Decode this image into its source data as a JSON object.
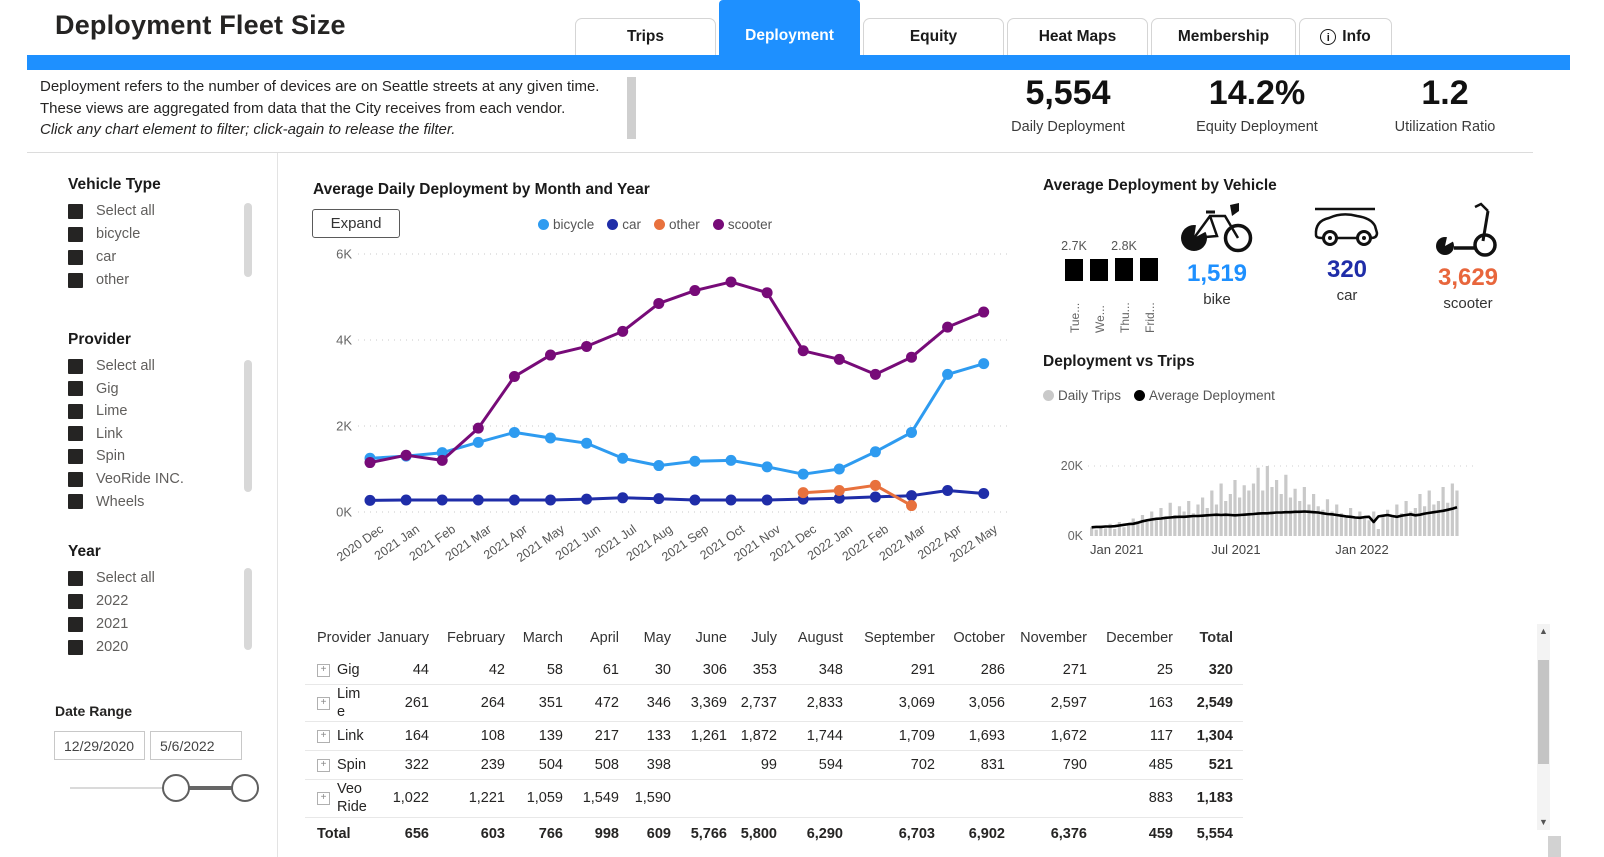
{
  "page": {
    "title": "Deployment Fleet Size"
  },
  "tabs": [
    {
      "label": "Trips",
      "active": false
    },
    {
      "label": "Deployment",
      "active": true
    },
    {
      "label": "Equity",
      "active": false
    },
    {
      "label": "Heat Maps",
      "active": false
    },
    {
      "label": "Membership",
      "active": false
    },
    {
      "label": "Info",
      "active": false,
      "icon": "info"
    }
  ],
  "description": {
    "line1": "Deployment refers to the number of devices are on Seattle streets at any given time.",
    "line2": "These views are aggregated from data that the City receives from each vendor.",
    "line3": "Click any chart element to filter; click-again to release the filter."
  },
  "kpis": [
    {
      "value": "5,554",
      "label": "Daily Deployment"
    },
    {
      "value": "14.2%",
      "label": "Equity Deployment"
    },
    {
      "value": "1.2",
      "label": "Utilization Ratio"
    }
  ],
  "filters": {
    "vehicle_type": {
      "title": "Vehicle Type",
      "items": [
        "Select all",
        "bicycle",
        "car",
        "other"
      ]
    },
    "provider": {
      "title": "Provider",
      "items": [
        "Select all",
        "Gig",
        "Lime",
        "Link",
        "Spin",
        "VeoRide INC.",
        "Wheels"
      ]
    },
    "year": {
      "title": "Year",
      "items": [
        "Select all",
        "2022",
        "2021",
        "2020"
      ]
    },
    "date_range": {
      "title": "Date Range",
      "start": "12/29/2020",
      "end": "5/6/2022"
    }
  },
  "vehicle_summary": {
    "title": "Average Deployment by Vehicle",
    "cards": [
      {
        "label": "bike",
        "value": "1,519",
        "color": "#1e90ff",
        "icon": "bike-icon"
      },
      {
        "label": "car",
        "value": "320",
        "color": "#1f2da8",
        "icon": "car-icon"
      },
      {
        "label": "scooter",
        "value": "3,629",
        "color": "#e8663c",
        "icon": "scooter-icon"
      }
    ]
  },
  "chart_data": [
    {
      "id": "monthly_deployment",
      "type": "line",
      "title": "Average Daily Deployment by Month and Year",
      "expand_label": "Expand",
      "x": [
        "2020 Dec",
        "2021 Jan",
        "2021 Feb",
        "2021 Mar",
        "2021 Apr",
        "2021 May",
        "2021 Jun",
        "2021 Jul",
        "2021 Aug",
        "2021 Sep",
        "2021 Oct",
        "2021 Nov",
        "2021 Dec",
        "2022 Jan",
        "2022 Feb",
        "2022 Mar",
        "2022 Apr",
        "2022 May"
      ],
      "ylim": [
        0,
        6000
      ],
      "yticks": [
        0,
        2000,
        4000,
        6000
      ],
      "ytick_labels": [
        "0K",
        "2K",
        "4K",
        "6K"
      ],
      "series": [
        {
          "name": "bicycle",
          "color": "#2e9bf0",
          "values": [
            1250,
            1300,
            1380,
            1620,
            1850,
            1720,
            1600,
            1250,
            1080,
            1180,
            1200,
            1050,
            880,
            1000,
            1400,
            1850,
            3200,
            3450
          ]
        },
        {
          "name": "car",
          "color": "#1f2da8",
          "values": [
            270,
            280,
            280,
            280,
            280,
            280,
            300,
            330,
            310,
            280,
            280,
            280,
            300,
            320,
            350,
            380,
            500,
            430
          ]
        },
        {
          "name": "other",
          "color": "#e8713d",
          "values": [
            null,
            null,
            null,
            null,
            null,
            null,
            null,
            null,
            null,
            null,
            null,
            null,
            450,
            500,
            620,
            150,
            null,
            null
          ]
        },
        {
          "name": "scooter",
          "color": "#770b78",
          "values": [
            1150,
            1320,
            1200,
            1950,
            3150,
            3650,
            3850,
            4200,
            4850,
            5150,
            5350,
            5100,
            3750,
            3550,
            3200,
            3600,
            4300,
            4650
          ]
        }
      ]
    },
    {
      "id": "avg_deployment_by_weekday",
      "type": "bar",
      "categories": [
        "Tue...",
        "We...",
        "Thu...",
        "Frid..."
      ],
      "values": [
        2700,
        2700,
        2800,
        2800
      ],
      "value_labels": [
        "2.7K",
        "",
        "2.8K",
        ""
      ],
      "bar_color": "#000000"
    },
    {
      "id": "deployment_vs_trips",
      "type": "area+line",
      "title": "Deployment vs Trips",
      "legend": [
        {
          "name": "Daily Trips",
          "color": "#c9c9c9"
        },
        {
          "name": "Average Deployment",
          "color": "#000000"
        }
      ],
      "ylim": [
        0,
        20000
      ],
      "ytick_labels": [
        "0K",
        "20K"
      ],
      "x_ticks": [
        "Jan 2021",
        "Jul 2021",
        "Jan 2022"
      ],
      "daily_trips_k": [
        2.5,
        1.8,
        3.0,
        2.2,
        3.5,
        2.0,
        4.0,
        2.5,
        3.0,
        5.0,
        3.5,
        6.0,
        4.0,
        7.0,
        4.5,
        8.0,
        5.0,
        9.5,
        6.0,
        8.5,
        7.0,
        10.0,
        6.5,
        9.0,
        11.0,
        8.0,
        13.0,
        9.0,
        15.0,
        10.0,
        12.0,
        16.0,
        11.0,
        14.5,
        13.0,
        15.0,
        19.5,
        13.0,
        20.0,
        14.0,
        16.0,
        12.0,
        17.5,
        11.0,
        13.5,
        10.0,
        14.0,
        9.0,
        12.0,
        8.5,
        7.5,
        10.5,
        7.0,
        9.0,
        6.5,
        6.0,
        8.0,
        5.5,
        7.0,
        5.0,
        4.5,
        7.0,
        2.0,
        6.0,
        7.5,
        6.0,
        9.0,
        6.5,
        10.0,
        7.0,
        8.0,
        12.0,
        8.5,
        13.0,
        9.0,
        10.0,
        14.0,
        9.5,
        15.0,
        13.0
      ],
      "avg_deployment_k": [
        2.5,
        2.6,
        2.6,
        2.7,
        2.7,
        2.8,
        3.0,
        3.2,
        3.4,
        3.5,
        3.8,
        4.2,
        4.5,
        4.7,
        4.9,
        5.0,
        5.2,
        5.3,
        5.4,
        5.5,
        5.5,
        5.6,
        5.7,
        5.7,
        5.8,
        5.9,
        6.0,
        6.1,
        6.0,
        6.1,
        6.0,
        5.9,
        6.0,
        6.1,
        6.2,
        6.3,
        6.4,
        6.5,
        6.5,
        6.6,
        6.7,
        6.7,
        6.8,
        6.8,
        6.9,
        6.9,
        7.0,
        6.9,
        6.8,
        6.7,
        6.5,
        6.3,
        6.2,
        6.0,
        5.8,
        5.6,
        5.5,
        5.3,
        5.2,
        5.4,
        5.5,
        4.0,
        5.6,
        5.8,
        6.0,
        5.7,
        5.5,
        5.8,
        6.0,
        6.2,
        5.9,
        6.1,
        6.4,
        6.6,
        6.8,
        7.0,
        7.2,
        7.5,
        7.8,
        8.2
      ]
    }
  ],
  "table": {
    "columns": [
      "Provider",
      "January",
      "February",
      "March",
      "April",
      "May",
      "June",
      "July",
      "August",
      "September",
      "October",
      "November",
      "December",
      "Total"
    ],
    "rows": [
      {
        "provider": "Gig",
        "values": [
          "44",
          "42",
          "58",
          "61",
          "30",
          "306",
          "353",
          "348",
          "291",
          "286",
          "271",
          "25"
        ],
        "total": "320"
      },
      {
        "provider": "Lime",
        "values": [
          "261",
          "264",
          "351",
          "472",
          "346",
          "3,369",
          "2,737",
          "2,833",
          "3,069",
          "3,056",
          "2,597",
          "163"
        ],
        "total": "2,549"
      },
      {
        "provider": "Link",
        "values": [
          "164",
          "108",
          "139",
          "217",
          "133",
          "1,261",
          "1,872",
          "1,744",
          "1,709",
          "1,693",
          "1,672",
          "117"
        ],
        "total": "1,304"
      },
      {
        "provider": "Spin",
        "values": [
          "322",
          "239",
          "504",
          "508",
          "398",
          "",
          "99",
          "594",
          "702",
          "831",
          "790",
          "485"
        ],
        "total": "521"
      },
      {
        "provider": "VeoRide",
        "values": [
          "1,022",
          "1,221",
          "1,059",
          "1,549",
          "1,590",
          "",
          "",
          "",
          "",
          "",
          "",
          "883"
        ],
        "total": "1,183"
      }
    ],
    "total_row": {
      "provider": "Total",
      "values": [
        "656",
        "603",
        "766",
        "998",
        "609",
        "5,766",
        "5,800",
        "6,290",
        "6,703",
        "6,902",
        "6,376",
        "459"
      ],
      "total": "5,554"
    }
  }
}
